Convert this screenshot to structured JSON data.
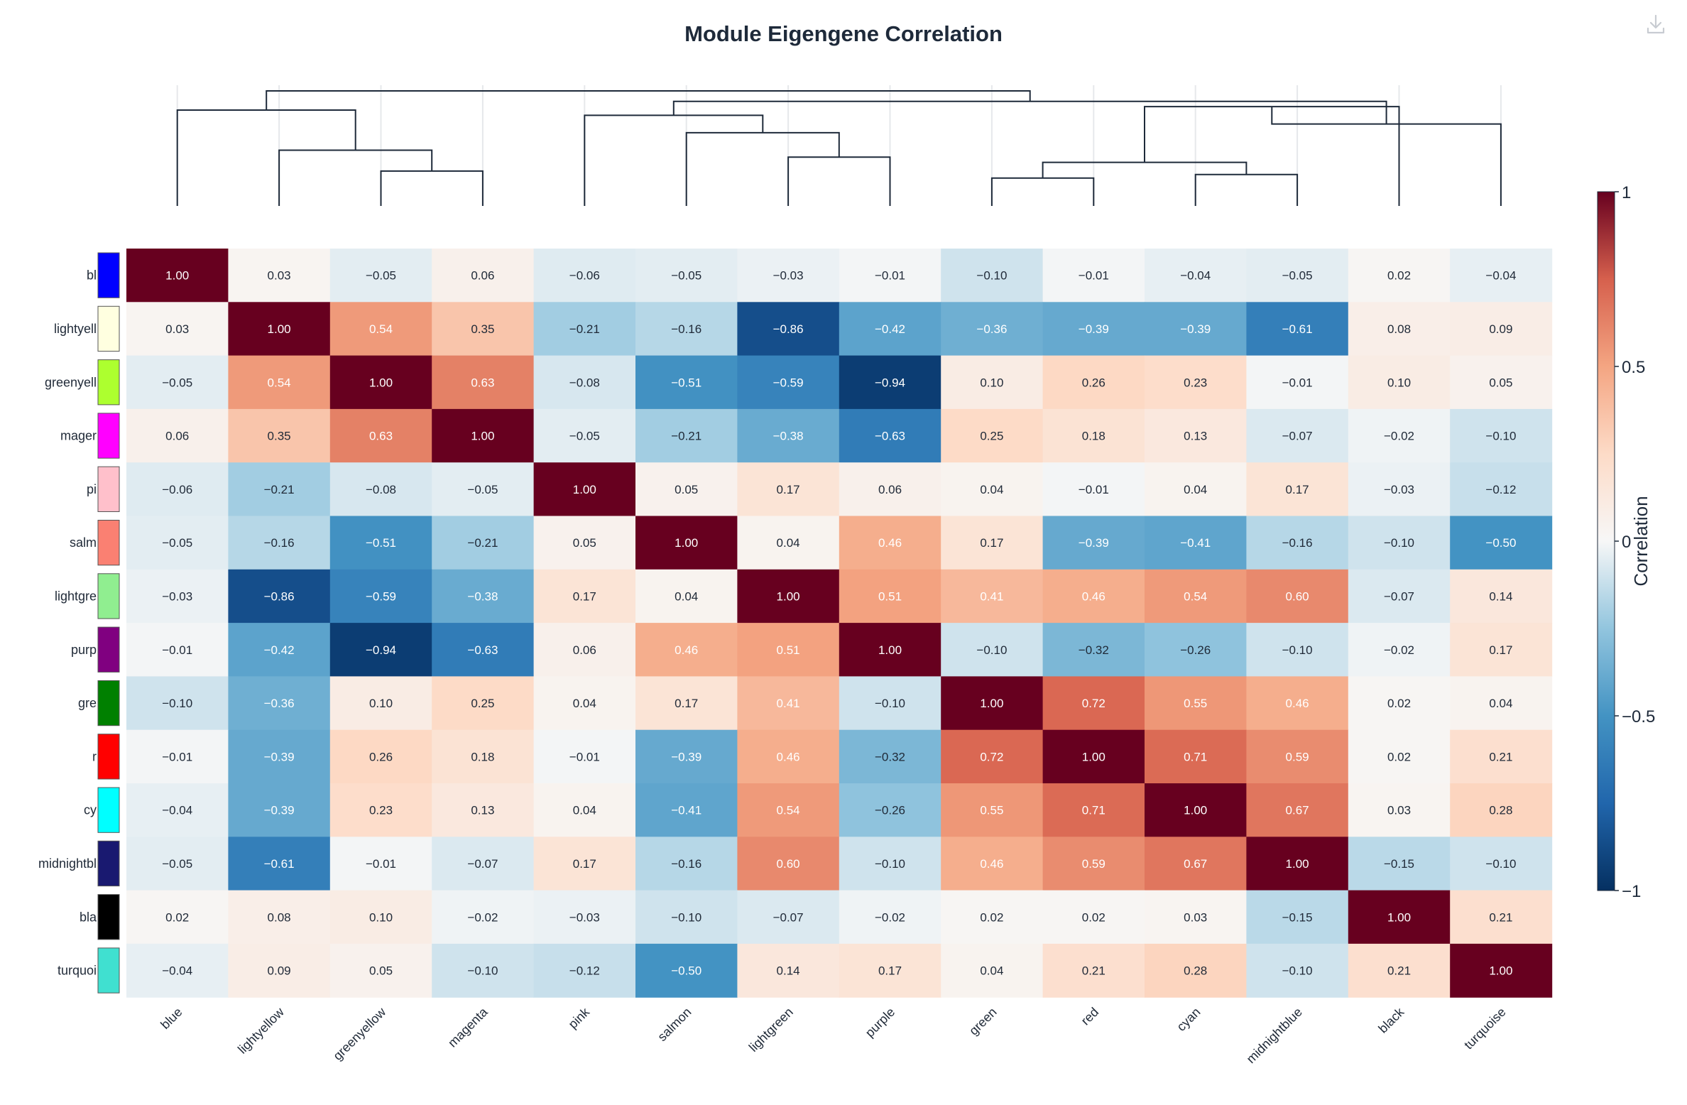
{
  "chart_data": {
    "type": "heatmap",
    "title": "Module Eigengene Correlation",
    "x_labels": [
      "blue",
      "lightyellow",
      "greenyellow",
      "magenta",
      "pink",
      "salmon",
      "lightgreen",
      "purple",
      "green",
      "red",
      "cyan",
      "midnightblue",
      "black",
      "turquoise"
    ],
    "y_labels_visible": [
      "bl",
      "lightyell",
      "greenyell",
      "mager",
      "pi",
      "salm",
      "lightgre",
      "purp",
      "gre",
      "r",
      "cy",
      "midnightbl",
      "bla",
      "turquoi"
    ],
    "module_colors": [
      "#0000ff",
      "#ffffe0",
      "#adff2f",
      "#ff00ff",
      "#ffc0cb",
      "#fa8072",
      "#90ee90",
      "#800080",
      "#008000",
      "#ff0000",
      "#00ffff",
      "#191970",
      "#000000",
      "#40e0d0"
    ],
    "matrix": [
      [
        1.0,
        0.03,
        -0.05,
        0.06,
        -0.06,
        -0.05,
        -0.03,
        -0.01,
        -0.1,
        -0.01,
        -0.04,
        -0.05,
        0.02,
        -0.04
      ],
      [
        0.03,
        1.0,
        0.54,
        0.35,
        -0.21,
        -0.16,
        -0.86,
        -0.42,
        -0.36,
        -0.39,
        -0.39,
        -0.61,
        0.08,
        0.09
      ],
      [
        -0.05,
        0.54,
        1.0,
        0.63,
        -0.08,
        -0.51,
        -0.59,
        -0.94,
        0.1,
        0.26,
        0.23,
        -0.01,
        0.1,
        0.05
      ],
      [
        0.06,
        0.35,
        0.63,
        1.0,
        -0.05,
        -0.21,
        -0.38,
        -0.63,
        0.25,
        0.18,
        0.13,
        -0.07,
        -0.02,
        -0.1
      ],
      [
        -0.06,
        -0.21,
        -0.08,
        -0.05,
        1.0,
        0.05,
        0.17,
        0.06,
        0.04,
        -0.01,
        0.04,
        0.17,
        -0.03,
        -0.12
      ],
      [
        -0.05,
        -0.16,
        -0.51,
        -0.21,
        0.05,
        1.0,
        0.04,
        0.46,
        0.17,
        -0.39,
        -0.41,
        -0.16,
        -0.1,
        -0.5
      ],
      [
        -0.03,
        -0.86,
        -0.59,
        -0.38,
        0.17,
        0.04,
        1.0,
        0.51,
        0.41,
        0.46,
        0.54,
        0.6,
        -0.07,
        0.14
      ],
      [
        -0.01,
        -0.42,
        -0.94,
        -0.63,
        0.06,
        0.46,
        0.51,
        1.0,
        -0.1,
        -0.32,
        -0.26,
        -0.1,
        -0.02,
        0.17
      ],
      [
        -0.1,
        -0.36,
        0.1,
        0.25,
        0.04,
        0.17,
        0.41,
        -0.1,
        1.0,
        0.72,
        0.55,
        0.46,
        0.02,
        0.04
      ],
      [
        -0.01,
        -0.39,
        0.26,
        0.18,
        -0.01,
        -0.39,
        0.46,
        -0.32,
        0.72,
        1.0,
        0.71,
        0.59,
        0.02,
        0.21
      ],
      [
        -0.04,
        -0.39,
        0.23,
        0.13,
        0.04,
        -0.41,
        0.54,
        -0.26,
        0.55,
        0.71,
        1.0,
        0.67,
        0.03,
        0.28
      ],
      [
        -0.05,
        -0.61,
        -0.01,
        -0.07,
        0.17,
        -0.16,
        0.6,
        -0.1,
        0.46,
        0.59,
        0.67,
        1.0,
        -0.15,
        -0.1
      ],
      [
        0.02,
        0.08,
        0.1,
        -0.02,
        -0.03,
        -0.1,
        -0.07,
        -0.02,
        0.02,
        0.02,
        0.03,
        -0.15,
        1.0,
        0.21
      ],
      [
        -0.04,
        0.09,
        0.05,
        -0.1,
        -0.12,
        -0.5,
        0.14,
        0.17,
        0.04,
        0.21,
        0.28,
        -0.1,
        0.21,
        1.0
      ]
    ],
    "colorscale": {
      "title": "Correlation",
      "range": [
        -1,
        1
      ],
      "tick_values": [
        1,
        0.5,
        0,
        -0.5,
        -1
      ],
      "tick_labels": [
        "1",
        "0.5",
        "0",
        "−0.5",
        "−1"
      ],
      "stops": [
        [
          -1,
          "#053061"
        ],
        [
          -0.75,
          "#2166ac"
        ],
        [
          -0.5,
          "#4393c3"
        ],
        [
          -0.25,
          "#92c5de"
        ],
        [
          0,
          "#f7f7f7"
        ],
        [
          0.25,
          "#fddbc7"
        ],
        [
          0.5,
          "#f4a582"
        ],
        [
          0.75,
          "#d6604d"
        ],
        [
          1,
          "#67001f"
        ]
      ]
    },
    "dendrogram": {
      "merges": [
        [
          2,
          3,
          0.2
        ],
        [
          1,
          14,
          0.32
        ],
        [
          0,
          15,
          0.55
        ],
        [
          6,
          7,
          0.28
        ],
        [
          5,
          17,
          0.42
        ],
        [
          4,
          18,
          0.52
        ],
        [
          8,
          9,
          0.16
        ],
        [
          10,
          11,
          0.18
        ],
        [
          20,
          21,
          0.25
        ],
        [
          22,
          12,
          0.57
        ],
        [
          23,
          13,
          0.47
        ],
        [
          19,
          24,
          0.6
        ],
        [
          16,
          25,
          0.66
        ]
      ],
      "max_height": 0.66
    },
    "grid": false,
    "legend": "colorbar-right"
  },
  "toolbar": {
    "download_icon": "download-icon"
  }
}
